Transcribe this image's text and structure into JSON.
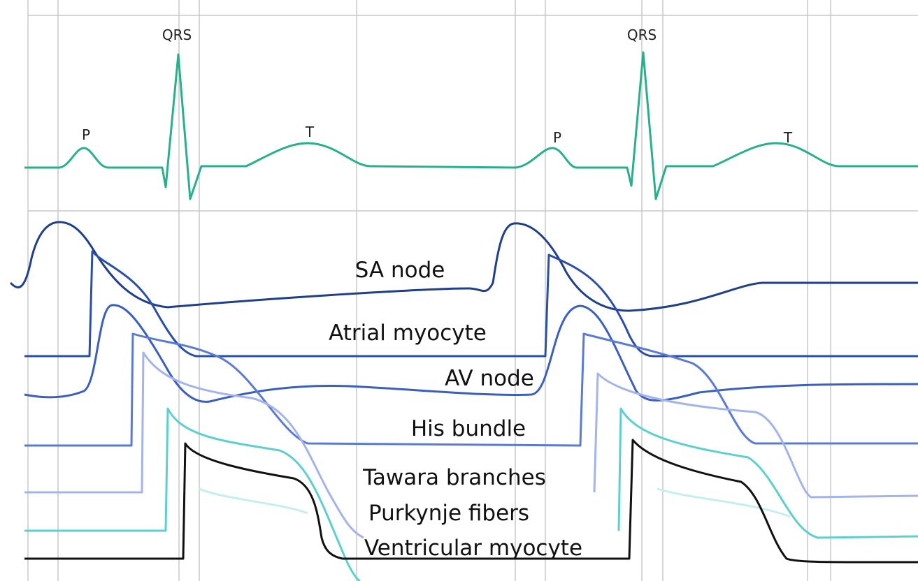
{
  "ecg": {
    "waves": [
      "QRS",
      "QRS",
      "P",
      "T",
      "P",
      "T"
    ]
  },
  "traces": {
    "labels": [
      "SA node",
      "Atrial myocyte",
      "AV node",
      "His bundle",
      "Tawara branches",
      "Purkynje fibers",
      "Ventricular myocyte"
    ]
  }
}
